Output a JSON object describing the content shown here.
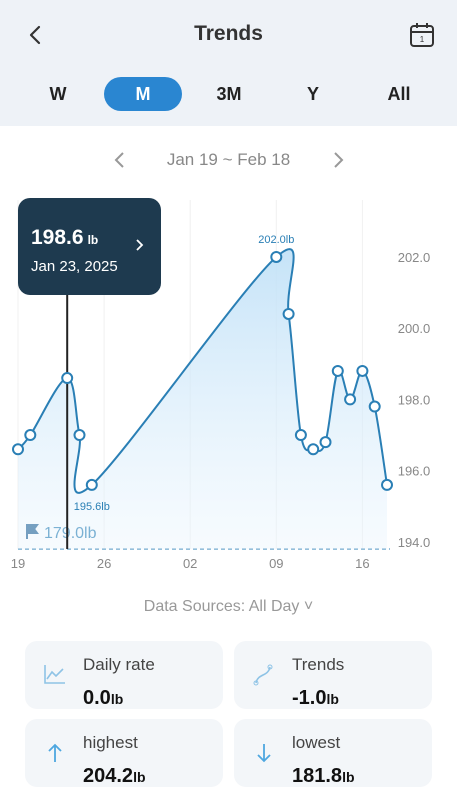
{
  "header": {
    "title": "Trends"
  },
  "tabs": {
    "items": [
      "W",
      "M",
      "3M",
      "Y",
      "All"
    ],
    "active": 1
  },
  "date_range": "Jan 19 ~ Feb 18",
  "chart_data": {
    "type": "line",
    "x": [
      0,
      1,
      4,
      5,
      6,
      21,
      22,
      23,
      24,
      25,
      26,
      27,
      28,
      29,
      30
    ],
    "series": [
      {
        "color": "#2a7fb5",
        "values": [
          196.6,
          197.0,
          198.6,
          197.0,
          195.6,
          202.0,
          200.4,
          197.0,
          196.6,
          196.8,
          198.8,
          198.0,
          198.8,
          197.8,
          195.6
        ],
        "value_labels": [
          null,
          null,
          null,
          null,
          "195.6lb",
          "202.0lb",
          null,
          null,
          null,
          null,
          null,
          null,
          null,
          null,
          null
        ]
      }
    ],
    "xlim": [
      0,
      30
    ],
    "xticks": [
      {
        "value": 0,
        "label": "19"
      },
      {
        "value": 7,
        "label": "26"
      },
      {
        "value": 14,
        "label": "02"
      },
      {
        "value": 21,
        "label": "09"
      },
      {
        "value": 28,
        "label": "16"
      }
    ],
    "ylim": [
      193.8,
      203.6
    ],
    "yticks": [
      {
        "value": 194,
        "label": "194.0"
      },
      {
        "value": 196,
        "label": "196.0"
      },
      {
        "value": 198,
        "label": "198.0"
      },
      {
        "value": 200,
        "label": "200.0"
      },
      {
        "value": 202,
        "label": "202.0"
      }
    ],
    "goal": {
      "label": "179.0lb"
    },
    "tooltip": {
      "index": 2,
      "value": "198.6",
      "unit": "lb",
      "date": "Jan 23, 2025"
    }
  },
  "data_sources": "Data Sources: All Day",
  "stats": [
    {
      "label": "Daily rate",
      "value": "0.0",
      "unit": "lb"
    },
    {
      "label": "Trends",
      "value": "-1.0",
      "unit": "lb"
    },
    {
      "label": "highest",
      "value": "204.2",
      "unit": "lb"
    },
    {
      "label": "lowest",
      "value": "181.8",
      "unit": "lb"
    }
  ]
}
